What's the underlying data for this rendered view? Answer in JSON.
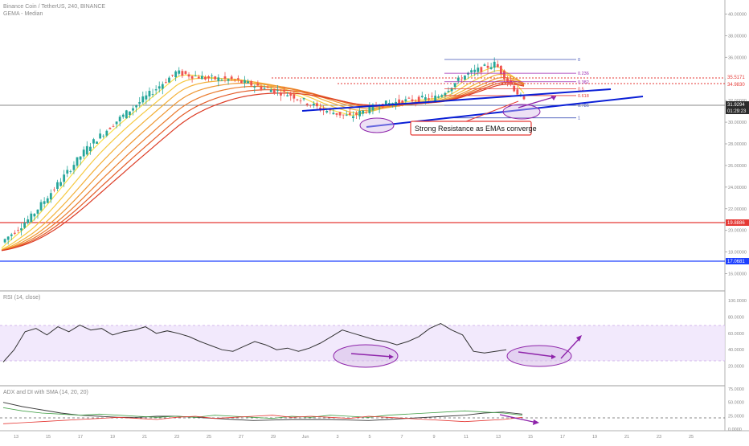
{
  "header": {
    "symbol_line": "Binance Coin / TetherUS, 240, BINANCE",
    "indicator_line": "GEMA - Median"
  },
  "annotation": {
    "resistance_label": "Strong Resistance as EMAs converge"
  },
  "fib_labels": [
    "0",
    "0.236",
    "0.382",
    "0.5",
    "0.618",
    "0.786",
    "1"
  ],
  "price_axis": {
    "ticks": [
      "40.00000",
      "38.00000",
      "36.00000",
      "34.00000",
      "32.00000",
      "30.00000",
      "28.00000",
      "26.00000",
      "24.00000",
      "22.00000",
      "20.00000",
      "18.00000",
      "16.00000"
    ],
    "marker_labels": [
      "35.5171",
      "34.9830",
      "31.9294",
      "01:29:23",
      "19.8886",
      "17.0681"
    ]
  },
  "rsi": {
    "title": "RSI (14, close)",
    "ticks": [
      "100.0000",
      "80.0000",
      "60.0000",
      "40.0000",
      "20.0000"
    ]
  },
  "adx": {
    "title": "ADX and DI with SMA (14, 20, 20)",
    "ticks": [
      "75.0000",
      "50.0000",
      "25.0000",
      "0.0000"
    ]
  },
  "time_axis": {
    "ticks": [
      "13",
      "15",
      "17",
      "19",
      "21",
      "23",
      "25",
      "27",
      "29",
      "Jun",
      "3",
      "5",
      "7",
      "9",
      "11",
      "13",
      "15",
      "17",
      "19",
      "21",
      "23",
      "25"
    ]
  },
  "colors": {
    "up_candle": "#26a69a",
    "down_candle": "#ef5350",
    "red_level": "#e53935",
    "blue_level": "#1e40ff",
    "trend_line": "#0a1fd6",
    "arrow": "#8e24aa",
    "rsi_band": "#efe3fb",
    "ellipse_fill": "#d7bde8",
    "ellipse_stroke": "#8e24aa"
  },
  "chart_data": {
    "type": "candlestick",
    "title": "Binance Coin / TetherUS, 240, BINANCE",
    "interval": "4h",
    "price_levels": {
      "red_support": 19.8886,
      "blue_support": 17.0681,
      "current": 31.9294,
      "upper_resistance_1": 35.5171,
      "upper_resistance_2": 34.983
    },
    "ylim": [
      15,
      41
    ],
    "price_path": [
      {
        "x": "May 12",
        "y": 18.9
      },
      {
        "x": "May 14",
        "y": 21.2
      },
      {
        "x": "May 16",
        "y": 24.5
      },
      {
        "x": "May 18",
        "y": 27.8
      },
      {
        "x": "May 20",
        "y": 30.2
      },
      {
        "x": "May 22",
        "y": 32.4
      },
      {
        "x": "May 24",
        "y": 34.6
      },
      {
        "x": "May 26",
        "y": 34.1
      },
      {
        "x": "May 28",
        "y": 33.9
      },
      {
        "x": "May 30",
        "y": 33.2
      },
      {
        "x": "Jun 1",
        "y": 32.5
      },
      {
        "x": "Jun 3",
        "y": 31.2
      },
      {
        "x": "Jun 5",
        "y": 30.5
      },
      {
        "x": "Jun 7",
        "y": 31.6
      },
      {
        "x": "Jun 9",
        "y": 32.0
      },
      {
        "x": "Jun 11",
        "y": 32.3
      },
      {
        "x": "Jun 13",
        "y": 34.4
      },
      {
        "x": "Jun 14",
        "y": 35.4
      },
      {
        "x": "Jun 15",
        "y": 31.9
      }
    ],
    "fibonacci": {
      "levels": [
        0,
        0.236,
        0.382,
        0.5,
        0.618,
        0.786,
        1
      ],
      "high": 35.8,
      "low": 30.4
    },
    "rsi": {
      "range": [
        0,
        100
      ],
      "band": [
        30,
        70
      ],
      "values": [
        25,
        40,
        62,
        66,
        58,
        68,
        62,
        70,
        64,
        66,
        58,
        62,
        64,
        68,
        60,
        63,
        60,
        56,
        50,
        45,
        40,
        38,
        44,
        50,
        46,
        40,
        42,
        38,
        42,
        48,
        56,
        64,
        60,
        56,
        52,
        50,
        46,
        50,
        56,
        66,
        72,
        64,
        58,
        38,
        36,
        38,
        40
      ]
    },
    "adx": {
      "range": [
        0,
        75
      ],
      "adx": [
        50,
        42,
        36,
        30,
        26,
        24,
        22,
        22,
        24,
        24,
        22,
        20,
        18,
        16,
        17,
        18,
        18,
        18,
        17,
        16,
        18,
        20,
        22,
        24,
        26,
        30,
        32,
        28
      ],
      "di_plus": [
        40,
        34,
        30,
        28,
        26,
        28,
        26,
        24,
        22,
        24,
        22,
        26,
        24,
        22,
        20,
        24,
        22,
        26,
        24,
        22,
        26,
        28,
        30,
        32,
        34,
        32,
        30,
        26
      ],
      "di_minus": [
        10,
        12,
        14,
        16,
        18,
        20,
        22,
        20,
        18,
        22,
        24,
        20,
        22,
        24,
        26,
        22,
        24,
        22,
        20,
        24,
        22,
        20,
        18,
        16,
        14,
        16,
        18,
        22
      ]
    }
  }
}
